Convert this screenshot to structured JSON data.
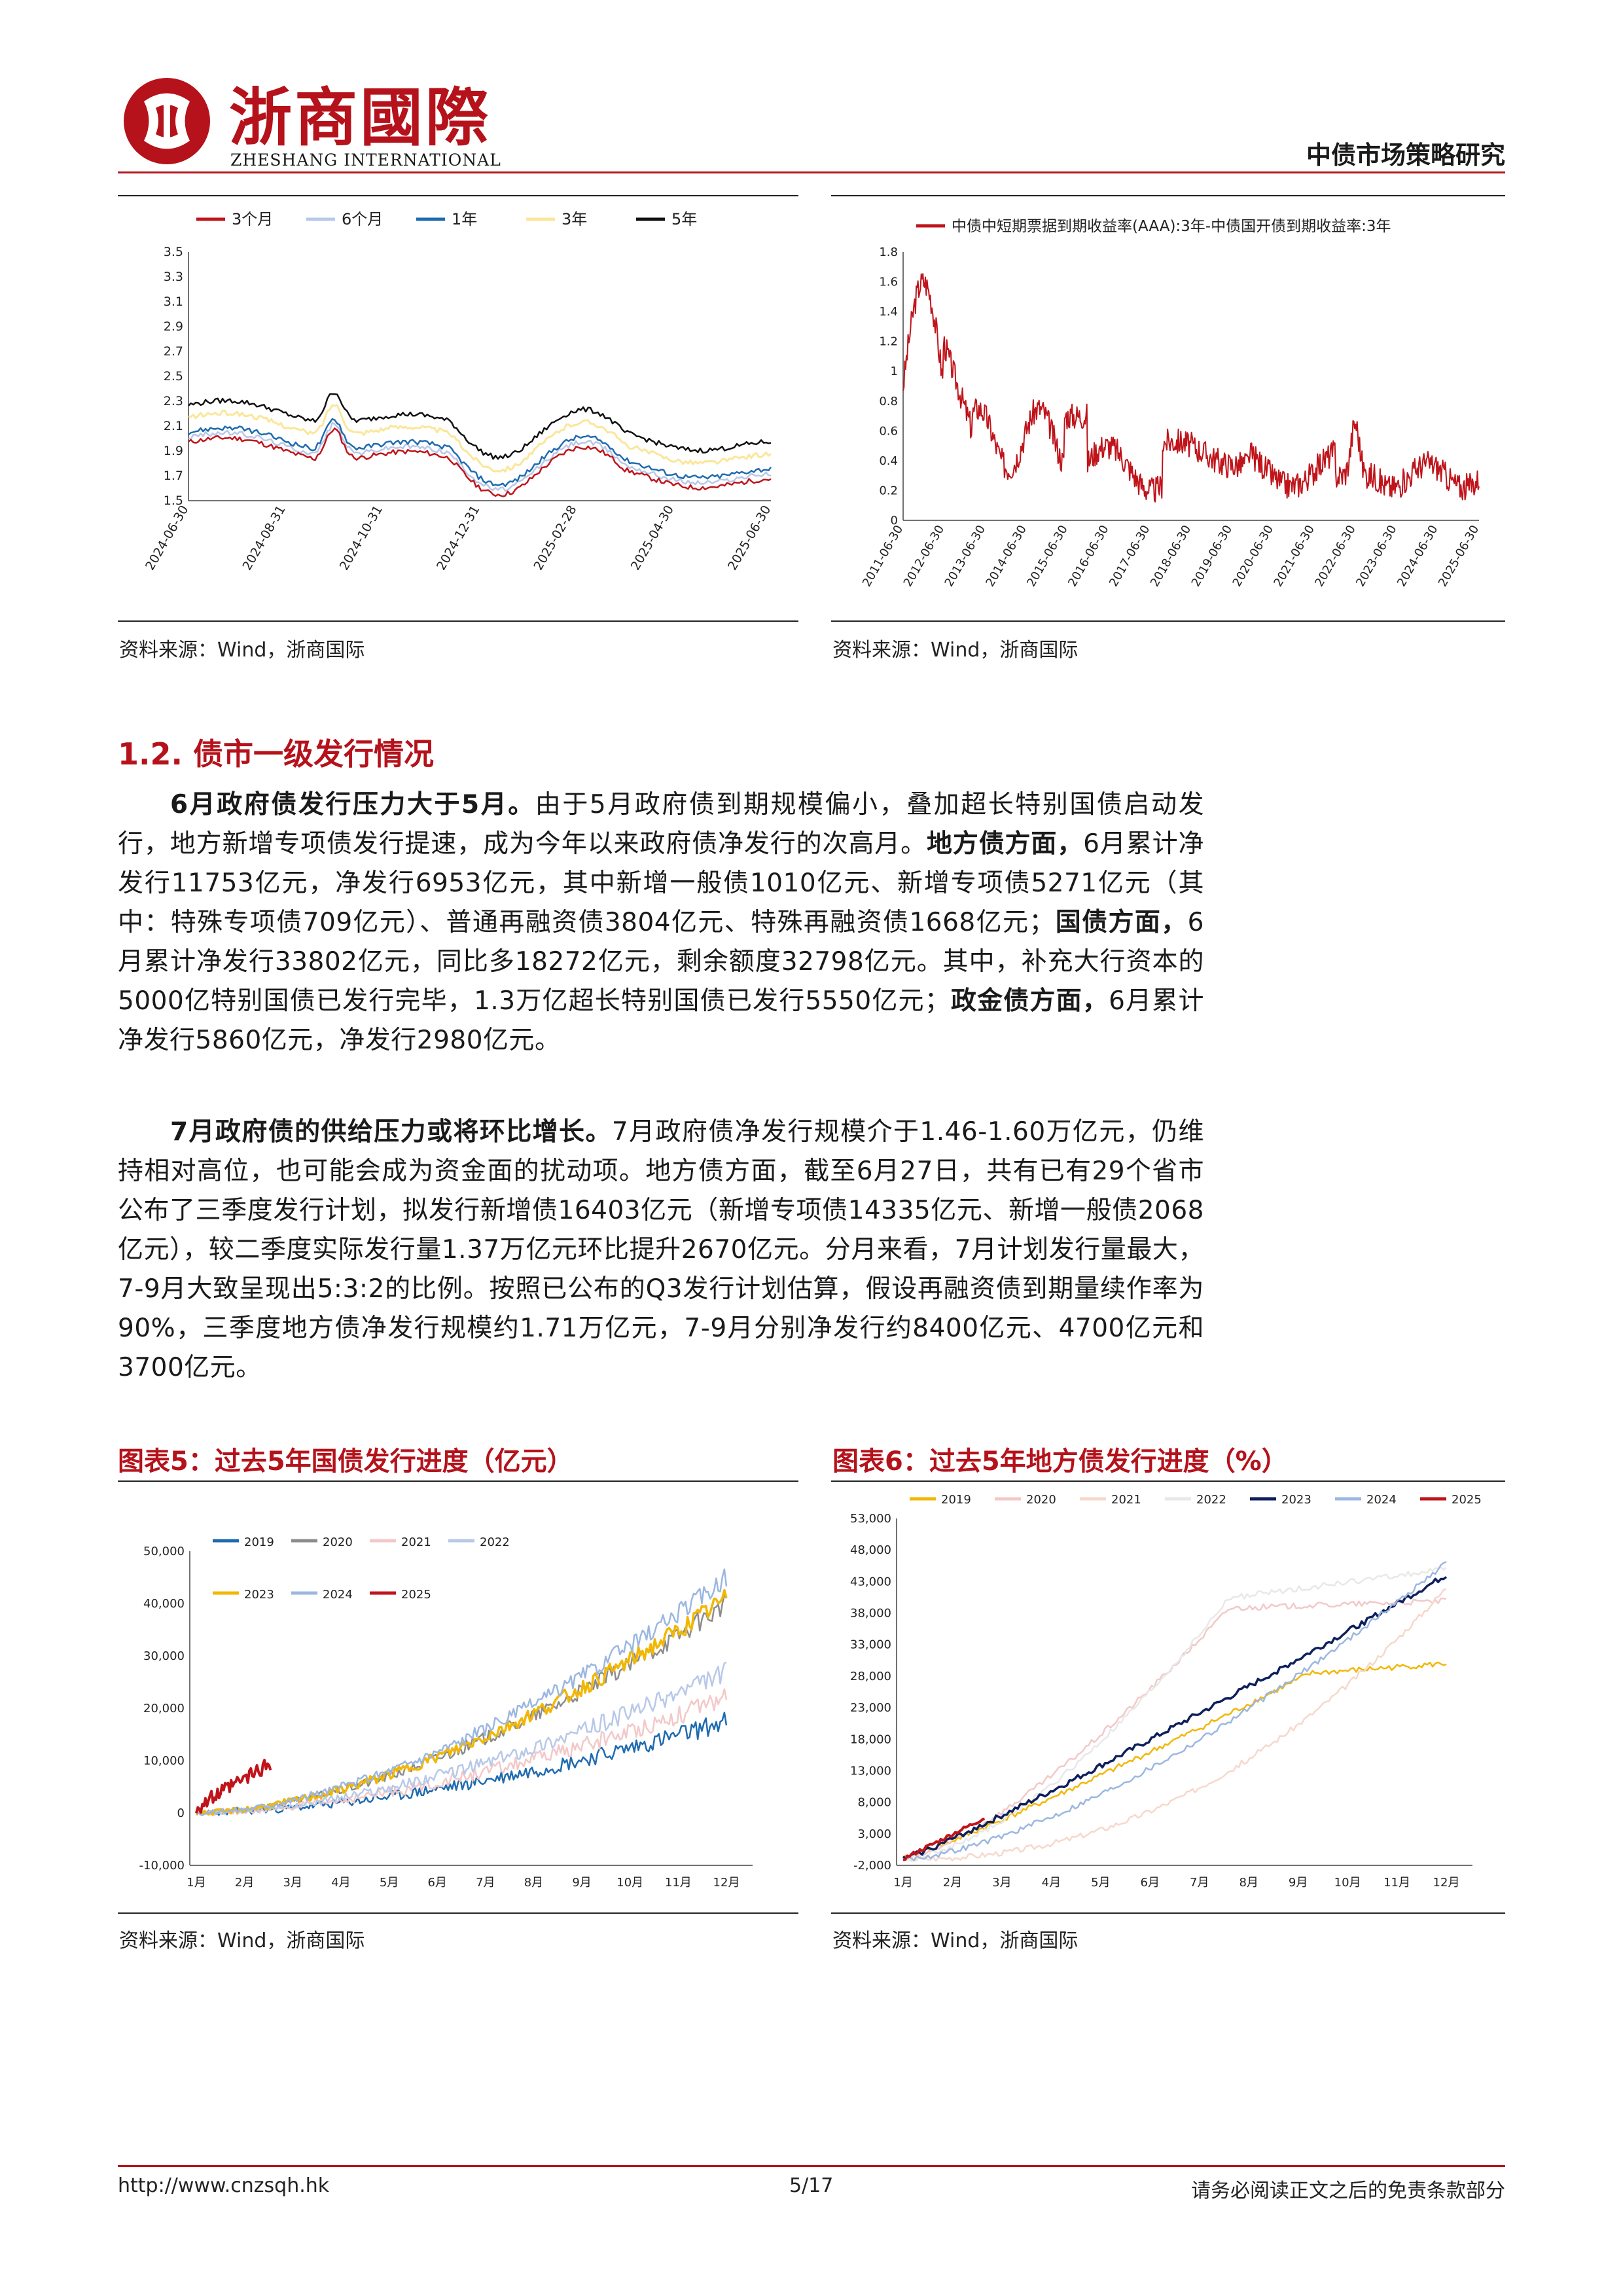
{
  "header": {
    "logo_cn": "浙商國際",
    "logo_en": "ZHESHANG INTERNATIONAL",
    "report_title": "中债市场策略研究"
  },
  "top_left_chart": {
    "legend": [
      "3个月",
      "6个月",
      "1年",
      "3年",
      "5年"
    ],
    "legend_colors": [
      "#c0141b",
      "#b8c8e8",
      "#1f6bb0",
      "#fbe69a",
      "#111111"
    ],
    "y_ticks": [
      "3.5",
      "3.3",
      "3.1",
      "2.9",
      "2.7",
      "2.5",
      "2.3",
      "2.1",
      "1.9",
      "1.7",
      "1.5"
    ],
    "x_ticks": [
      "2024-06-30",
      "2024-08-31",
      "2024-10-31",
      "2024-12-31",
      "2025-02-28",
      "2025-04-30",
      "2025-06-30"
    ],
    "source": "资料来源：Wind，浙商国际"
  },
  "top_right_chart": {
    "legend": "中债中短期票据到期收益率(AAA):3年-中债国开债到期收益率:3年",
    "color": "#c0141b",
    "y_ticks": [
      "1.8",
      "1.6",
      "1.4",
      "1.2",
      "1",
      "0.8",
      "0.6",
      "0.4",
      "0.2",
      "0"
    ],
    "x_ticks": [
      "2011-06-30",
      "2012-06-30",
      "2013-06-30",
      "2014-06-30",
      "2015-06-30",
      "2016-06-30",
      "2017-06-30",
      "2018-06-30",
      "2019-06-30",
      "2020-06-30",
      "2021-06-30",
      "2022-06-30",
      "2023-06-30",
      "2024-06-30",
      "2025-06-30"
    ],
    "source": "资料来源：Wind，浙商国际"
  },
  "section": {
    "title": "1.2.  债市一级发行情况"
  },
  "paragraph1": {
    "bold_lead": "6月政府债发行压力大于5月。",
    "t1": "由于5月政府债到期规模偏小，叠加超长特别国债启动发行，地方新增专项债发行提速，成为今年以来政府债净发行的次高月。",
    "b2": "地方债方面，",
    "t2": "6月累计净发行11753亿元，净发行6953亿元，其中新增一般债1010亿元、新增专项债5271亿元（其中：特殊专项债709亿元）、普通再融资债3804亿元、特殊再融资债1668亿元；",
    "b3": "国债方面，",
    "t3": "6月累计净发行33802亿元，同比多18272亿元，剩余额度32798亿元。其中，补充大行资本的5000亿特别国债已发行完毕，1.3万亿超长特别国债已发行5550亿元；",
    "b4": "政金债方面，",
    "t4": "6月累计净发行5860亿元，净发行2980亿元。"
  },
  "paragraph2": {
    "bold_lead": "7月政府债的供给压力或将环比增长。",
    "text": "7月政府债净发行规模介于1.46-1.60万亿元，仍维持相对高位，也可能会成为资金面的扰动项。地方债方面，截至6月27日，共有已有29个省市公布了三季度发行计划，拟发行新增债16403亿元（新增专项债14335亿元、新增一般债2068亿元），较二季度实际发行量1.37万亿元环比提升2670亿元。分月来看，7月计划发行量最大，7-9月大致呈现出5:3:2的比例。按照已公布的Q3发行计划估算，假设再融资债到期量续作率为90%，三季度地方债净发行规模约1.71万亿元，7-9月分别净发行约8400亿元、4700亿元和3700亿元。"
  },
  "figure5": {
    "title": "图表5：过去5年国债发行进度（亿元）",
    "legend": [
      "2019",
      "2020",
      "2021",
      "2022",
      "2023",
      "2024",
      "2025"
    ],
    "legend_colors": [
      "#1f6bb0",
      "#8c8c8c",
      "#f3c8c8",
      "#b8c8e8",
      "#f2b705",
      "#9bb7e0",
      "#c0141b"
    ],
    "y_ticks": [
      "50,000",
      "40,000",
      "30,000",
      "20,000",
      "10,000",
      "0",
      "-10,000"
    ],
    "x_ticks": [
      "1月",
      "2月",
      "3月",
      "4月",
      "5月",
      "6月",
      "7月",
      "8月",
      "9月",
      "10月",
      "11月",
      "12月"
    ],
    "source": "资料来源：Wind，浙商国际"
  },
  "figure6": {
    "title": "图表6：过去5年地方债发行进度（%）",
    "legend": [
      "2019",
      "2020",
      "2021",
      "2022",
      "2023",
      "2024",
      "2025"
    ],
    "legend_colors": [
      "#f2b705",
      "#f3c8c8",
      "#f6d8cc",
      "#e8e8e8",
      "#0d1f5c",
      "#9bb7e0",
      "#c0141b"
    ],
    "y_ticks": [
      "53,000",
      "48,000",
      "43,000",
      "38,000",
      "33,000",
      "28,000",
      "23,000",
      "18,000",
      "13,000",
      "8,000",
      "3,000",
      "-2,000"
    ],
    "x_ticks": [
      "1月",
      "2月",
      "3月",
      "4月",
      "5月",
      "6月",
      "7月",
      "8月",
      "9月",
      "10月",
      "11月",
      "12月"
    ],
    "source": "资料来源：Wind，浙商国际"
  },
  "footer": {
    "url": "http://www.cnzsqh.hk",
    "page": "5/17",
    "disclaimer": "请务必阅读正文之后的免责条款部分"
  }
}
